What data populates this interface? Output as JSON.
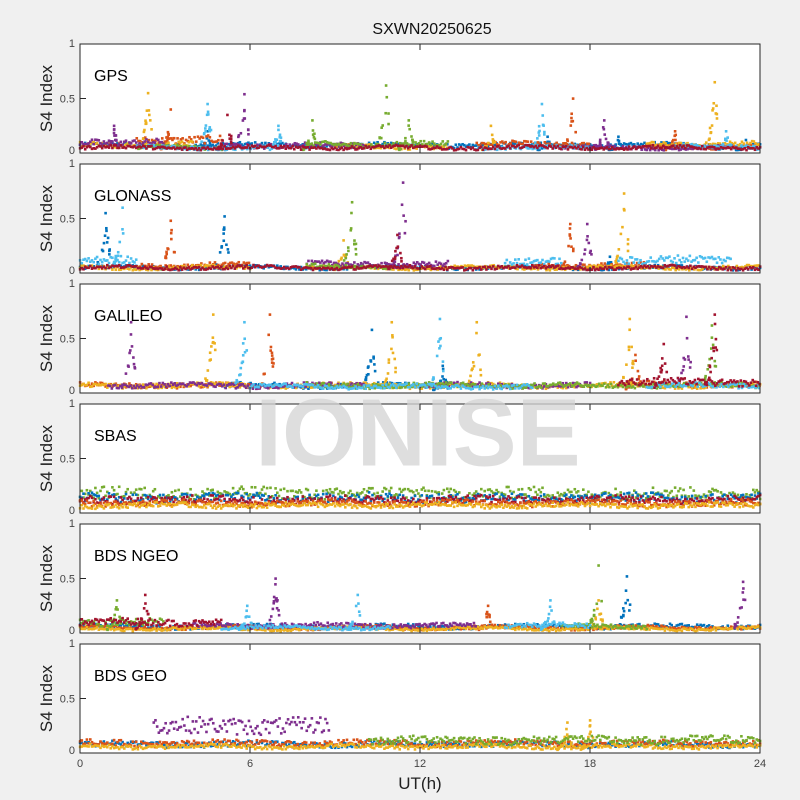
{
  "chart_data": {
    "type": "scatter",
    "title": "SXWN20250625",
    "xlabel": "UT(h)",
    "ylabel": "S4 Index",
    "xlim": [
      0,
      24
    ],
    "ylim": [
      0,
      1
    ],
    "xticks": [
      "0",
      "6",
      "12",
      "18",
      "24"
    ],
    "yticks": [
      "0",
      "0.5",
      "1"
    ],
    "watermark": "IONISE",
    "colors": [
      "#0072BD",
      "#D95319",
      "#EDB120",
      "#7E2F8E",
      "#77AC30",
      "#4DBEEE",
      "#A2142F"
    ],
    "panels": [
      {
        "label": "GPS",
        "series": [
          {
            "c": 0,
            "seg": [
              [
                0,
                24,
                0.07
              ]
            ],
            "spikes": [
              [
                4.5,
                0.2
              ],
              [
                16.5,
                0.15
              ],
              [
                19,
                0.15
              ],
              [
                23.5,
                0.12
              ]
            ]
          },
          {
            "c": 1,
            "seg": [
              [
                2,
                5,
                0.12
              ],
              [
                14,
                18,
                0.08
              ],
              [
                20,
                24,
                0.06
              ]
            ],
            "spikes": [
              [
                3.2,
                0.4
              ],
              [
                17.4,
                0.5
              ],
              [
                21,
                0.2
              ]
            ]
          },
          {
            "c": 2,
            "seg": [
              [
                0,
                4,
                0.08
              ],
              [
                9,
                13,
                0.06
              ],
              [
                20,
                24,
                0.08
              ]
            ],
            "spikes": [
              [
                2.4,
                0.55
              ],
              [
                22.4,
                0.65
              ],
              [
                14.5,
                0.25
              ]
            ]
          },
          {
            "c": 3,
            "seg": [
              [
                0,
                3,
                0.1
              ],
              [
                5,
                10,
                0.07
              ],
              [
                17,
                23,
                0.05
              ]
            ],
            "spikes": [
              [
                5.8,
                0.54
              ],
              [
                18.5,
                0.3
              ],
              [
                1.2,
                0.25
              ]
            ]
          },
          {
            "c": 4,
            "seg": [
              [
                2,
                5,
                0.05
              ],
              [
                8,
                13,
                0.08
              ]
            ],
            "spikes": [
              [
                8.2,
                0.3
              ],
              [
                10.8,
                0.62
              ],
              [
                11.6,
                0.3
              ]
            ]
          },
          {
            "c": 5,
            "seg": [
              [
                2,
                7,
                0.05
              ],
              [
                14,
                18,
                0.05
              ],
              [
                21,
                24,
                0.06
              ]
            ],
            "spikes": [
              [
                4.5,
                0.45
              ],
              [
                7,
                0.25
              ],
              [
                16.3,
                0.45
              ],
              [
                22.8,
                0.2
              ]
            ]
          },
          {
            "c": 6,
            "seg": [
              [
                0,
                24,
                0.05
              ]
            ],
            "spikes": [
              [
                5.2,
                0.35
              ]
            ]
          }
        ]
      },
      {
        "label": "GLONASS",
        "series": [
          {
            "c": 0,
            "seg": [
              [
                0,
                24,
                0.05
              ]
            ],
            "spikes": [
              [
                0.9,
                0.55
              ],
              [
                5.1,
                0.52
              ],
              [
                18.7,
                0.15
              ]
            ]
          },
          {
            "c": 1,
            "seg": [
              [
                2,
                6,
                0.07
              ],
              [
                16,
                20,
                0.07
              ]
            ],
            "spikes": [
              [
                3.2,
                0.48
              ],
              [
                17.3,
                0.45
              ]
            ]
          },
          {
            "c": 2,
            "seg": [
              [
                0,
                6,
                0.05
              ],
              [
                8,
                24,
                0.05
              ]
            ],
            "spikes": [
              [
                19.2,
                0.73
              ],
              [
                9.3,
                0.3
              ]
            ]
          },
          {
            "c": 3,
            "seg": [
              [
                8,
                13,
                0.08
              ]
            ],
            "spikes": [
              [
                11.4,
                0.83
              ],
              [
                17.9,
                0.45
              ]
            ]
          },
          {
            "c": 4,
            "seg": [
              [
                8,
                11,
                0.06
              ]
            ],
            "spikes": [
              [
                9.6,
                0.65
              ]
            ]
          },
          {
            "c": 5,
            "seg": [
              [
                0,
                2,
                0.12
              ],
              [
                15,
                17,
                0.1
              ],
              [
                19,
                23,
                0.12
              ]
            ],
            "spikes": [
              [
                1.5,
                0.6
              ]
            ]
          },
          {
            "c": 6,
            "seg": [
              [
                0,
                24,
                0.05
              ]
            ],
            "spikes": [
              [
                11.2,
                0.35
              ]
            ]
          }
        ]
      },
      {
        "label": "GALILEO",
        "series": [
          {
            "c": 0,
            "seg": [
              [
                5,
                13,
                0.07
              ]
            ],
            "spikes": [
              [
                10.3,
                0.58
              ],
              [
                12.8,
                0.25
              ]
            ]
          },
          {
            "c": 1,
            "seg": [
              [
                0,
                6,
                0.07
              ],
              [
                19,
                24,
                0.08
              ]
            ],
            "spikes": [
              [
                6.7,
                0.72
              ],
              [
                19.6,
                0.35
              ]
            ]
          },
          {
            "c": 2,
            "seg": [
              [
                0,
                24,
                0.07
              ]
            ],
            "spikes": [
              [
                4.7,
                0.72
              ],
              [
                11,
                0.65
              ],
              [
                14,
                0.65
              ],
              [
                19.4,
                0.68
              ]
            ]
          },
          {
            "c": 3,
            "seg": [
              [
                1,
                10,
                0.07
              ],
              [
                12,
                18,
                0.07
              ]
            ],
            "spikes": [
              [
                1.8,
                0.65
              ],
              [
                21.4,
                0.7
              ]
            ]
          },
          {
            "c": 4,
            "seg": [
              [
                8,
                24,
                0.07
              ]
            ],
            "spikes": [
              [
                22.3,
                0.62
              ]
            ]
          },
          {
            "c": 5,
            "seg": [
              [
                6,
                16,
                0.06
              ],
              [
                20,
                24,
                0.07
              ]
            ],
            "spikes": [
              [
                5.8,
                0.65
              ],
              [
                12.7,
                0.68
              ]
            ]
          },
          {
            "c": 6,
            "seg": [
              [
                19,
                24,
                0.1
              ]
            ],
            "spikes": [
              [
                22.4,
                0.72
              ],
              [
                20.6,
                0.45
              ]
            ]
          }
        ]
      },
      {
        "label": "SBAS",
        "series": [
          {
            "c": 4,
            "seg": [
              [
                0,
                24,
                0.18
              ]
            ],
            "spikes": []
          },
          {
            "c": 0,
            "seg": [
              [
                0,
                24,
                0.14
              ]
            ],
            "spikes": []
          },
          {
            "c": 6,
            "seg": [
              [
                0,
                24,
                0.12
              ]
            ],
            "spikes": []
          },
          {
            "c": 1,
            "seg": [
              [
                0,
                24,
                0.09
              ]
            ],
            "spikes": []
          },
          {
            "c": 2,
            "seg": [
              [
                0,
                24,
                0.07
              ]
            ],
            "spikes": []
          }
        ]
      },
      {
        "label": "BDS NGEO",
        "series": [
          {
            "c": 0,
            "seg": [
              [
                0,
                24,
                0.06
              ]
            ],
            "spikes": [
              [
                19.3,
                0.52
              ]
            ]
          },
          {
            "c": 1,
            "seg": [
              [
                0,
                24,
                0.05
              ]
            ],
            "spikes": [
              [
                14.4,
                0.25
              ]
            ]
          },
          {
            "c": 2,
            "seg": [
              [
                0,
                24,
                0.04
              ]
            ],
            "spikes": [
              [
                18.3,
                0.3
              ]
            ]
          },
          {
            "c": 3,
            "seg": [
              [
                4,
                14,
                0.07
              ]
            ],
            "spikes": [
              [
                6.9,
                0.5
              ],
              [
                23.4,
                0.47
              ]
            ]
          },
          {
            "c": 4,
            "seg": [
              [
                0,
                3,
                0.1
              ],
              [
                17,
                20,
                0.06
              ]
            ],
            "spikes": [
              [
                1.3,
                0.3
              ],
              [
                18.3,
                0.62
              ]
            ]
          },
          {
            "c": 5,
            "seg": [
              [
                5,
                11,
                0.05
              ],
              [
                15,
                18,
                0.07
              ]
            ],
            "spikes": [
              [
                9.8,
                0.35
              ],
              [
                16.6,
                0.3
              ],
              [
                5.9,
                0.25
              ]
            ]
          },
          {
            "c": 6,
            "seg": [
              [
                0,
                5,
                0.1
              ]
            ],
            "spikes": [
              [
                2.3,
                0.35
              ]
            ]
          }
        ]
      },
      {
        "label": "BDS GEO",
        "series": [
          {
            "c": 0,
            "seg": [
              [
                0,
                24,
                0.08
              ]
            ],
            "spikes": []
          },
          {
            "c": 1,
            "seg": [
              [
                0,
                24,
                0.09
              ]
            ],
            "spikes": []
          },
          {
            "c": 2,
            "seg": [
              [
                0,
                24,
                0.06
              ]
            ],
            "spikes": [
              [
                17.2,
                0.28
              ],
              [
                18,
                0.3
              ]
            ]
          },
          {
            "c": 3,
            "seg": [
              [
                2.6,
                8.8,
                0.25
              ]
            ],
            "spikes": []
          },
          {
            "c": 4,
            "seg": [
              [
                10.2,
                24,
                0.12
              ]
            ],
            "spikes": []
          }
        ]
      }
    ]
  }
}
